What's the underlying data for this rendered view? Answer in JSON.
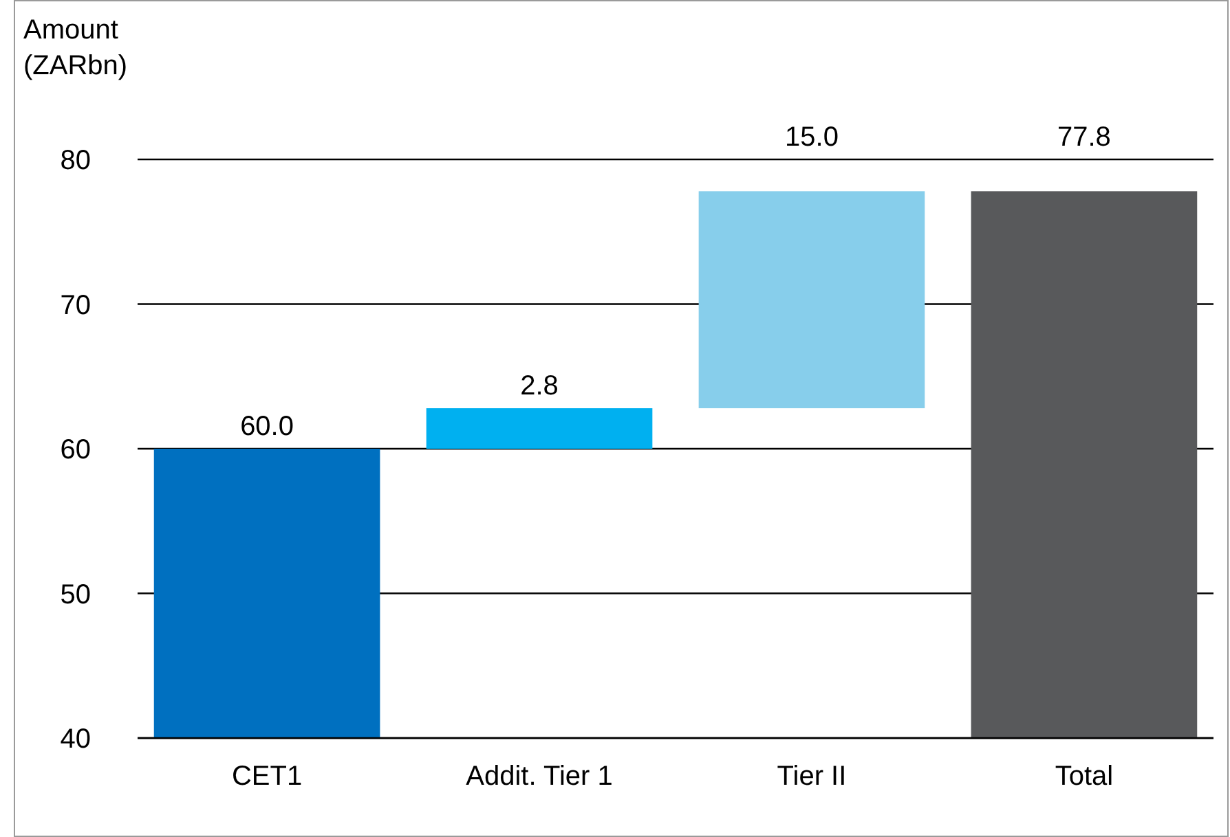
{
  "chart_data": {
    "type": "bar",
    "ylabel": "Amount (ZARbn)",
    "categories": [
      "CET1",
      "Addit. Tier 1",
      "Tier II",
      "Total"
    ],
    "values": [
      60,
      2.8,
      15,
      77.8
    ],
    "base": [
      null,
      60,
      62.8,
      null
    ],
    "colors": [
      "#0070c0",
      "#00b0f0",
      "#87ceeb",
      "#58595b"
    ],
    "value_labels": [
      "60.0",
      "2.8",
      "15.0",
      "77.8"
    ],
    "ylim": [
      40,
      80
    ],
    "yticks": [
      40,
      50,
      60,
      70,
      80
    ],
    "grid": "y"
  }
}
